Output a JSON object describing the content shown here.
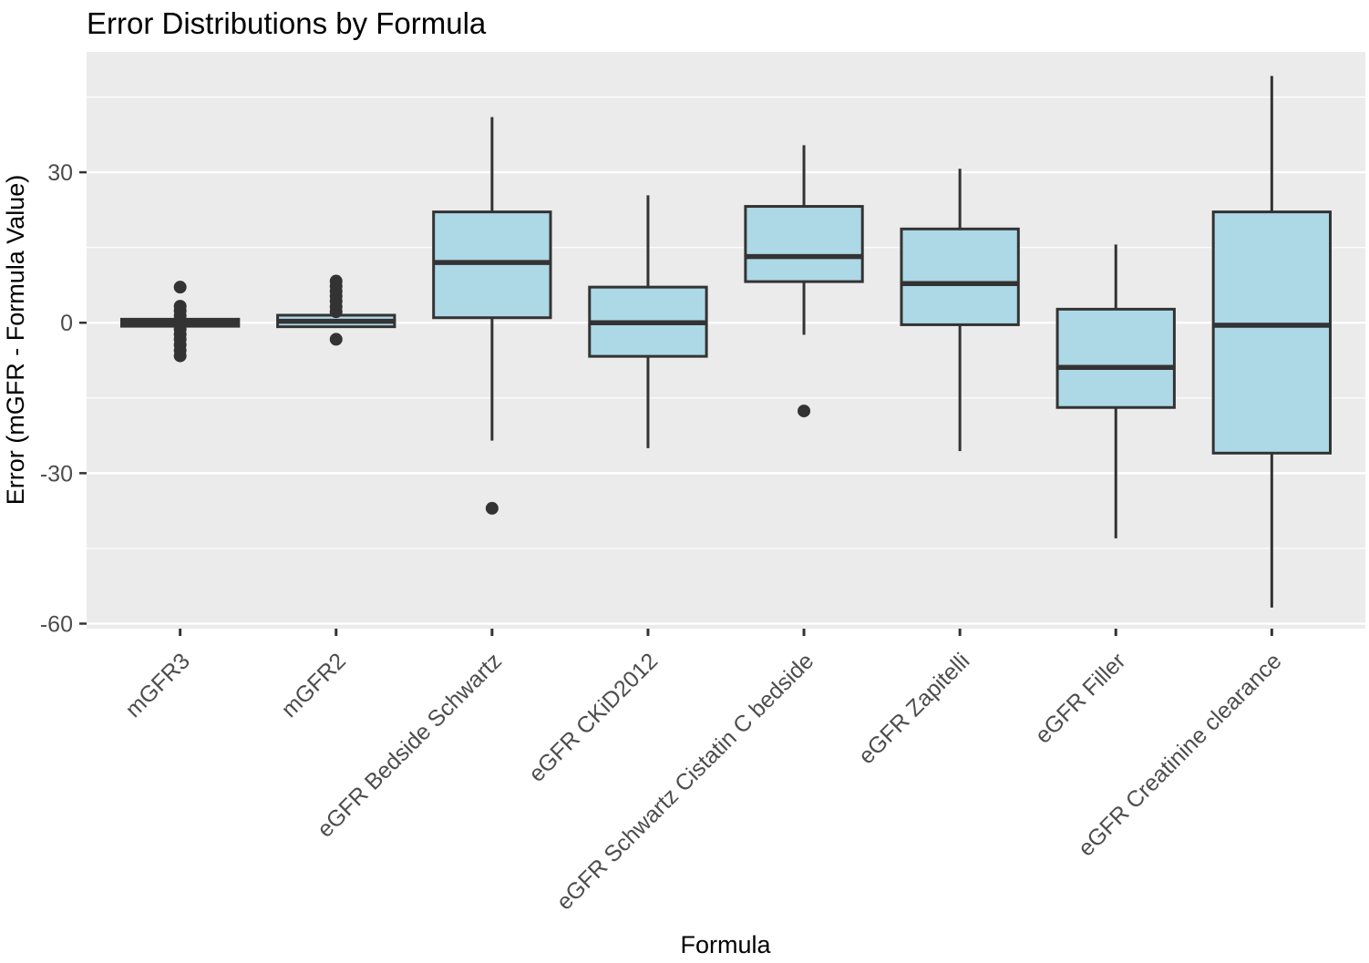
{
  "colors": {
    "panel_bg": "#EBEBEB",
    "grid": "#FFFFFF",
    "box_fill": "#ADD8E6",
    "box_stroke": "#333333",
    "outlier_fill": "#333333",
    "tick_mark": "#333333",
    "axis_text": "#4D4D4D",
    "title_color": "#000000"
  },
  "chart_data": {
    "type": "boxplot",
    "title": "Error Distributions by Formula",
    "xlabel": "Formula",
    "ylabel": "Error (mGFR - Formula Value)",
    "ylim": [
      -61,
      54
    ],
    "y_major_ticks": [
      30,
      0,
      -30,
      -60
    ],
    "y_minor_gridlines": [
      45,
      15,
      -15,
      -45
    ],
    "grid": "on",
    "categories": [
      "mGFR3",
      "mGFR2",
      "eGFR Bedside Schwartz",
      "eGFR CKiD2012",
      "eGFR Schwartz Cistatin C bedside",
      "eGFR Zapitelli",
      "eGFR Filler",
      "eGFR Creatinine clearance"
    ],
    "boxes": [
      {
        "label": "mGFR3",
        "whisker_low": -1.0,
        "q1": -0.7,
        "median": 0.0,
        "q3": 0.7,
        "whisker_high": 1.0,
        "outliers": [
          7.1,
          3.3,
          2.4,
          1.4,
          -1.3,
          -2.3,
          -3.3,
          -4.4,
          -5.5,
          -6.6
        ]
      },
      {
        "label": "mGFR2",
        "whisker_low": -1.0,
        "q1": -0.8,
        "median": 0.3,
        "q3": 1.5,
        "whisker_high": 1.8,
        "outliers": [
          8.3,
          7.3,
          6.3,
          5.3,
          4.3,
          3.2,
          2.2,
          -3.3
        ]
      },
      {
        "label": "eGFR Bedside Schwartz",
        "whisker_low": -23.5,
        "q1": 1.0,
        "median": 12.0,
        "q3": 22.1,
        "whisker_high": 41.0,
        "outliers": [
          -37.0
        ]
      },
      {
        "label": "eGFR CKiD2012",
        "whisker_low": -25.0,
        "q1": -6.7,
        "median": 0.0,
        "q3": 7.1,
        "whisker_high": 25.4,
        "outliers": []
      },
      {
        "label": "eGFR Schwartz Cistatin C bedside",
        "whisker_low": -2.4,
        "q1": 8.2,
        "median": 13.2,
        "q3": 23.2,
        "whisker_high": 35.4,
        "outliers": [
          -17.6
        ]
      },
      {
        "label": "eGFR Zapitelli",
        "whisker_low": -25.6,
        "q1": -0.4,
        "median": 7.8,
        "q3": 18.7,
        "whisker_high": 30.7,
        "outliers": []
      },
      {
        "label": "eGFR Filler",
        "whisker_low": -43.0,
        "q1": -16.9,
        "median": -8.9,
        "q3": 2.7,
        "whisker_high": 15.6,
        "outliers": []
      },
      {
        "label": "eGFR Creatinine clearance",
        "whisker_low": -56.8,
        "q1": -26.0,
        "median": -0.5,
        "q3": 22.1,
        "whisker_high": 49.2,
        "outliers": []
      }
    ]
  }
}
